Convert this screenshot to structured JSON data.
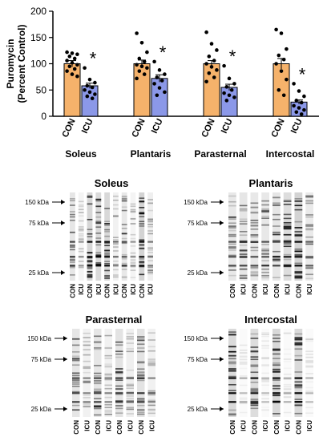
{
  "chart_data": {
    "type": "bar",
    "ylabel": [
      "Puromycin",
      "(Percent Control)"
    ],
    "ylim": [
      0,
      200
    ],
    "yticks": [
      0,
      50,
      100,
      150,
      200
    ],
    "muscles": [
      "Soleus",
      "Plantaris",
      "Parasternal",
      "Intercostal"
    ],
    "group_labels": [
      "CON",
      "ICU"
    ],
    "significance_marker": "*",
    "colors": {
      "CON": "#F5B26B",
      "ICU": "#8B98E8"
    },
    "series": [
      {
        "name": "CON",
        "values": [
          100,
          100,
          100,
          100
        ],
        "sem": [
          6,
          7,
          6,
          10
        ],
        "points": [
          [
            122,
            120,
            118,
            114,
            110,
            106,
            102,
            98,
            95,
            90,
            86,
            80,
            76
          ],
          [
            158,
            140,
            122,
            110,
            104,
            98,
            95,
            92,
            86,
            80,
            72
          ],
          [
            160,
            138,
            126,
            114,
            106,
            100,
            94,
            88,
            82,
            74,
            66
          ],
          [
            165,
            158,
            128,
            116,
            108,
            100,
            86,
            70,
            50,
            40
          ]
        ]
      },
      {
        "name": "ICU",
        "values": [
          58,
          72,
          55,
          27
        ],
        "sem": [
          5,
          7,
          6,
          4
        ],
        "points": [
          [
            92,
            70,
            64,
            58,
            55,
            50,
            46,
            42,
            38,
            34
          ],
          [
            104,
            88,
            80,
            74,
            68,
            62,
            54,
            46,
            40
          ],
          [
            96,
            72,
            62,
            56,
            50,
            44,
            40,
            36,
            30
          ],
          [
            62,
            48,
            38,
            30,
            26,
            20,
            16,
            12,
            8,
            4
          ]
        ]
      }
    ]
  },
  "blots": [
    {
      "title": "Soleus",
      "markers": [
        "150 kDa",
        "75 kDa",
        "25 kDa"
      ],
      "lanes": [
        "CON",
        "ICU",
        "CON",
        "ICU",
        "CON",
        "ICU",
        "CON",
        "ICU",
        "CON",
        "ICU"
      ],
      "intensity": [
        0.55,
        0.25,
        0.9,
        0.8,
        0.85,
        0.3,
        0.5,
        0.25,
        0.95,
        0.35
      ]
    },
    {
      "title": "Plantaris",
      "markers": [
        "150 kDa",
        "75 kDa",
        "25 kDa"
      ],
      "lanes": [
        "CON",
        "ICU",
        "CON",
        "ICU",
        "CON",
        "ICU",
        "CON",
        "ICU"
      ],
      "intensity": [
        0.5,
        0.55,
        0.5,
        0.5,
        0.55,
        0.75,
        0.95,
        0.45
      ]
    },
    {
      "title": "Parasternal",
      "markers": [
        "150 kDa",
        "75 kDa",
        "25 kDa"
      ],
      "lanes": [
        "CON",
        "ICU",
        "CON",
        "ICU",
        "CON",
        "ICU",
        "CON",
        "ICU"
      ],
      "intensity": [
        0.55,
        0.3,
        0.55,
        0.3,
        0.6,
        0.35,
        0.6,
        0.3
      ]
    },
    {
      "title": "Intercostal",
      "markers": [
        "150 kDa",
        "75 kDa",
        "25 kDa"
      ],
      "lanes": [
        "CON",
        "ICU",
        "CON",
        "ICU",
        "CON",
        "ICU",
        "CON",
        "ICU"
      ],
      "intensity": [
        0.8,
        0.1,
        0.75,
        0.1,
        0.85,
        0.1,
        0.8,
        0.1
      ]
    }
  ]
}
